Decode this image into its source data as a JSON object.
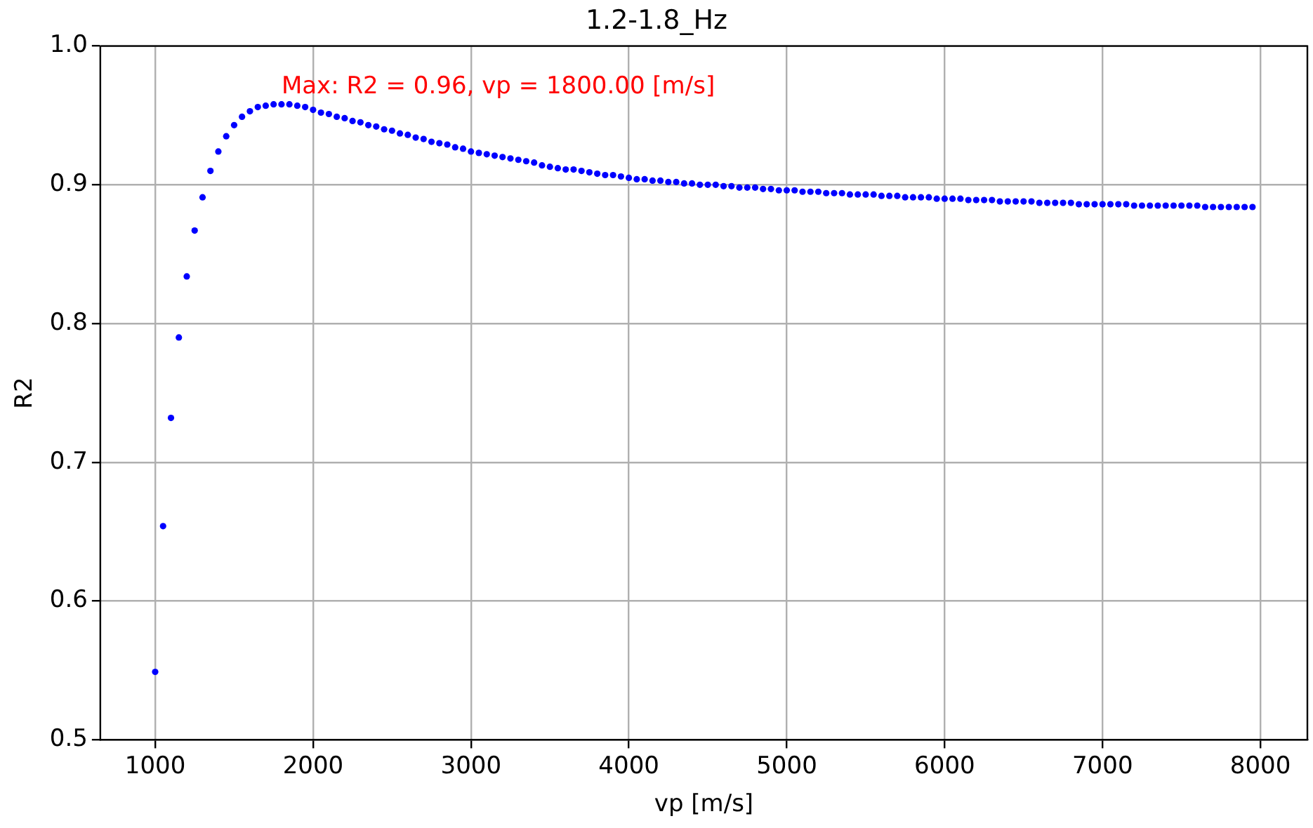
{
  "chart_data": {
    "type": "scatter",
    "title": "1.2-1.8_Hz",
    "xlabel": "vp [m/s]",
    "ylabel": "R2",
    "x": [
      1000,
      1050,
      1100,
      1150,
      1200,
      1250,
      1300,
      1350,
      1400,
      1450,
      1500,
      1550,
      1600,
      1650,
      1700,
      1750,
      1800,
      1850,
      1900,
      1950,
      2000,
      2050,
      2100,
      2150,
      2200,
      2250,
      2300,
      2350,
      2400,
      2450,
      2500,
      2550,
      2600,
      2650,
      2700,
      2750,
      2800,
      2850,
      2900,
      2950,
      3000,
      3050,
      3100,
      3150,
      3200,
      3250,
      3300,
      3350,
      3400,
      3450,
      3500,
      3550,
      3600,
      3650,
      3700,
      3750,
      3800,
      3850,
      3900,
      3950,
      4000,
      4050,
      4100,
      4150,
      4200,
      4250,
      4300,
      4350,
      4400,
      4450,
      4500,
      4550,
      4600,
      4650,
      4700,
      4750,
      4800,
      4850,
      4900,
      4950,
      5000,
      5050,
      5100,
      5150,
      5200,
      5250,
      5300,
      5350,
      5400,
      5450,
      5500,
      5550,
      5600,
      5650,
      5700,
      5750,
      5800,
      5850,
      5900,
      5950,
      6000,
      6050,
      6100,
      6150,
      6200,
      6250,
      6300,
      6350,
      6400,
      6450,
      6500,
      6550,
      6600,
      6650,
      6700,
      6750,
      6800,
      6850,
      6900,
      6950,
      7000,
      7050,
      7100,
      7150,
      7200,
      7250,
      7300,
      7350,
      7400,
      7450,
      7500,
      7550,
      7600,
      7650,
      7700,
      7750,
      7800,
      7850,
      7900,
      7950
    ],
    "series": [
      {
        "color": "#0000ff",
        "values": [
          0.549,
          0.654,
          0.732,
          0.79,
          0.834,
          0.867,
          0.891,
          0.91,
          0.924,
          0.935,
          0.943,
          0.949,
          0.953,
          0.956,
          0.957,
          0.958,
          0.958,
          0.958,
          0.957,
          0.956,
          0.954,
          0.952,
          0.951,
          0.949,
          0.948,
          0.946,
          0.945,
          0.943,
          0.942,
          0.94,
          0.939,
          0.937,
          0.936,
          0.934,
          0.933,
          0.931,
          0.93,
          0.929,
          0.927,
          0.926,
          0.924,
          0.923,
          0.922,
          0.921,
          0.92,
          0.919,
          0.918,
          0.917,
          0.916,
          0.914,
          0.913,
          0.912,
          0.911,
          0.911,
          0.91,
          0.909,
          0.908,
          0.907,
          0.907,
          0.906,
          0.905,
          0.904,
          0.904,
          0.903,
          0.903,
          0.902,
          0.902,
          0.901,
          0.901,
          0.9,
          0.9,
          0.9,
          0.899,
          0.899,
          0.898,
          0.898,
          0.898,
          0.897,
          0.897,
          0.896,
          0.896,
          0.896,
          0.895,
          0.895,
          0.895,
          0.894,
          0.894,
          0.894,
          0.893,
          0.893,
          0.893,
          0.893,
          0.892,
          0.892,
          0.892,
          0.891,
          0.891,
          0.891,
          0.891,
          0.89,
          0.89,
          0.89,
          0.89,
          0.889,
          0.889,
          0.889,
          0.889,
          0.888,
          0.888,
          0.888,
          0.888,
          0.888,
          0.887,
          0.887,
          0.887,
          0.887,
          0.887,
          0.886,
          0.886,
          0.886,
          0.886,
          0.886,
          0.886,
          0.886,
          0.885,
          0.885,
          0.885,
          0.885,
          0.885,
          0.885,
          0.885,
          0.885,
          0.885,
          0.884,
          0.884,
          0.884,
          0.884,
          0.884,
          0.884,
          0.884
        ]
      }
    ],
    "xlim": [
      652.5,
      8297.5
    ],
    "xticks": [
      1000,
      2000,
      3000,
      4000,
      5000,
      6000,
      7000,
      8000
    ],
    "ylim": [
      0.5,
      1.0
    ],
    "yticks": [
      0.5,
      0.6,
      0.7,
      0.8,
      0.9,
      {
        "value": 1.0,
        "label": "1.0"
      }
    ],
    "grid": true,
    "legend": false,
    "marker": "circle",
    "annotations": [
      {
        "text": "Max: R2 = 0.96, vp = 1800.00 [m/s]",
        "x": 1800,
        "y": 0.96
      }
    ]
  }
}
